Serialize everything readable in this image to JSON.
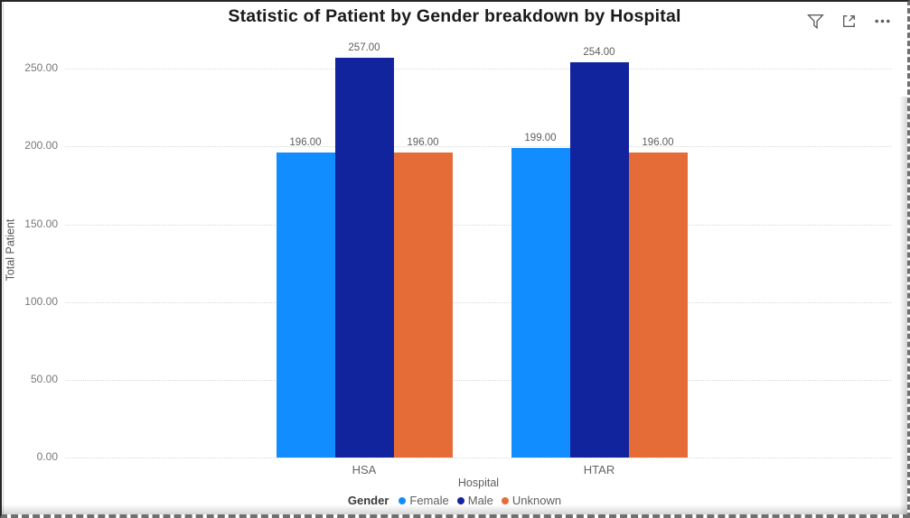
{
  "header": {
    "title": "Statistic of Patient by Gender breakdown by Hospital",
    "toolbar": {
      "filter_icon": "filter-funnel-icon",
      "focus_icon": "focus-mode-icon",
      "more_icon": "more-options-icon"
    }
  },
  "chart_data": {
    "type": "bar",
    "title": "Statistic of Patient by Gender breakdown by Hospital",
    "categories": [
      "HSA",
      "HTAR"
    ],
    "series": [
      {
        "name": "Female",
        "color": "#118DFF",
        "values": [
          196,
          199
        ]
      },
      {
        "name": "Male",
        "color": "#12239E",
        "values": [
          257,
          254
        ]
      },
      {
        "name": "Unknown",
        "color": "#E66C37",
        "values": [
          196,
          196
        ]
      }
    ],
    "xlabel": "Hospital",
    "ylabel": "Total Patient",
    "ylim": [
      0,
      267
    ],
    "yticks": [
      0,
      50,
      100,
      150,
      200,
      250
    ],
    "ytick_labels": [
      "0.00",
      "50.00",
      "100.00",
      "150.00",
      "200.00",
      "250.00"
    ],
    "data_labels": [
      [
        "196.00",
        "199.00"
      ],
      [
        "257.00",
        "254.00"
      ],
      [
        "196.00",
        "196.00"
      ]
    ],
    "legend_title": "Gender",
    "legend_position": "bottom",
    "grid": "dotted-horizontal"
  }
}
